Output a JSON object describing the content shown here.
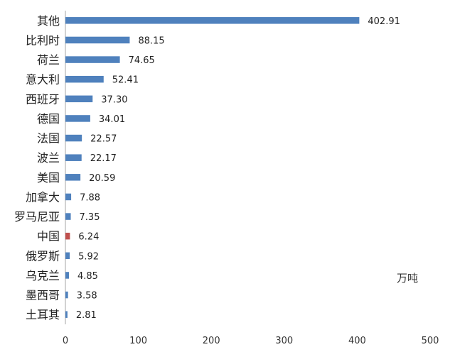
{
  "chart_data": {
    "type": "bar",
    "orientation": "horizontal",
    "categories": [
      "其他",
      "比利时",
      "荷兰",
      "意大利",
      "西班牙",
      "德国",
      "法国",
      "波兰",
      "美国",
      "加拿大",
      "罗马尼亚",
      "中国",
      "俄罗斯",
      "乌克兰",
      "墨西哥",
      "土耳其"
    ],
    "values": [
      402.91,
      88.15,
      74.65,
      52.41,
      37.3,
      34.01,
      22.57,
      22.17,
      20.59,
      7.88,
      7.35,
      6.24,
      5.92,
      4.85,
      3.58,
      2.81
    ],
    "value_labels": [
      "402.91",
      "88.15",
      "74.65",
      "52.41",
      "37.30",
      "34.01",
      "22.57",
      "22.17",
      "20.59",
      "7.88",
      "7.35",
      "6.24",
      "5.92",
      "4.85",
      "3.58",
      "2.81"
    ],
    "xlim": [
      0,
      500
    ],
    "xticks": [
      "0",
      "100",
      "200",
      "300",
      "400",
      "500"
    ],
    "unit": "万吨",
    "grid": false,
    "bar_color": "#4f81bd",
    "highlight_category": "中国",
    "highlight_color": "#c0504d"
  }
}
